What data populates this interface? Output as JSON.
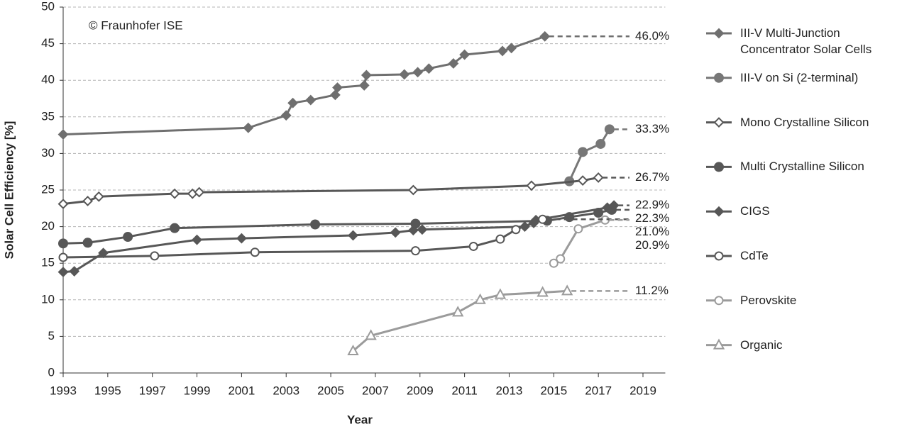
{
  "chart_data": {
    "type": "line",
    "annotation": "© Fraunhofer ISE",
    "x_label": "Year",
    "y_label": "Solar Cell Efficiency [%]",
    "xlim": [
      1993,
      2020
    ],
    "xticks": [
      1993,
      1995,
      1997,
      1999,
      2001,
      2003,
      2005,
      2007,
      2009,
      2011,
      2013,
      2015,
      2017,
      2019
    ],
    "ylim": [
      0,
      50
    ],
    "yticks": [
      0,
      5,
      10,
      15,
      20,
      25,
      30,
      35,
      40,
      45,
      50
    ],
    "grid": true,
    "series": [
      {
        "name": "III-V Multi-Junction Concentrator Solar Cells",
        "color": "#6f6f6f",
        "marker": "diamond",
        "filled": true,
        "x": [
          1993,
          2001.3,
          2003.0,
          2003.3,
          2004.1,
          2005.2,
          2005.3,
          2006.5,
          2006.6,
          2008.3,
          2008.9,
          2009.4,
          2010.5,
          2011.0,
          2012.7,
          2013.1,
          2014.6
        ],
        "values": [
          32.6,
          33.5,
          35.2,
          36.9,
          37.3,
          38.0,
          39.0,
          39.3,
          40.7,
          40.8,
          41.1,
          41.6,
          42.3,
          43.5,
          44.0,
          44.4,
          46.0
        ],
        "value_labels": [
          null,
          null,
          null,
          null,
          null,
          null,
          null,
          null,
          null,
          null,
          null,
          null,
          null,
          null,
          null,
          null,
          "46.0%"
        ]
      },
      {
        "name": "III-V on Si (2-terminal)",
        "color": "#777777",
        "marker": "circle",
        "filled": true,
        "x": [
          2015.7,
          2016.3,
          2017.1,
          2017.5
        ],
        "values": [
          26.2,
          30.2,
          31.3,
          33.3
        ],
        "value_labels": [
          null,
          null,
          null,
          "33.3%"
        ]
      },
      {
        "name": "Mono Crystalline Silicon",
        "color": "#575757",
        "marker": "diamond",
        "filled": false,
        "x": [
          1993,
          1994.1,
          1994.6,
          1998.0,
          1998.8,
          1999.1,
          2008.7,
          2014.0,
          2016.3,
          2017.0
        ],
        "values": [
          23.1,
          23.5,
          24.1,
          24.5,
          24.5,
          24.7,
          25.0,
          25.6,
          26.3,
          26.7
        ],
        "value_labels": [
          null,
          null,
          null,
          null,
          null,
          null,
          null,
          null,
          null,
          "26.7%"
        ]
      },
      {
        "name": "Multi Crystalline Silicon",
        "color": "#575757",
        "marker": "circle",
        "filled": true,
        "x": [
          1993,
          1994.1,
          1995.9,
          1998.0,
          2004.3,
          2008.8,
          2014.7,
          2015.7,
          2017.0,
          2017.6
        ],
        "values": [
          17.7,
          17.8,
          18.6,
          19.8,
          20.3,
          20.4,
          20.8,
          21.3,
          21.9,
          22.3
        ],
        "value_labels": [
          null,
          null,
          null,
          null,
          null,
          null,
          null,
          null,
          null,
          "22.3%"
        ]
      },
      {
        "name": "CIGS",
        "color": "#575757",
        "marker": "diamond",
        "filled": true,
        "x": [
          1993,
          1993.5,
          1994.8,
          1999.0,
          2001.0,
          2006.0,
          2007.9,
          2008.7,
          2009.1,
          2013.7,
          2014.1,
          2014.2,
          2017.4,
          2017.7
        ],
        "values": [
          13.8,
          13.9,
          16.4,
          18.2,
          18.4,
          18.8,
          19.2,
          19.5,
          19.6,
          20.0,
          20.5,
          20.9,
          22.6,
          22.9
        ],
        "value_labels": [
          null,
          null,
          null,
          null,
          null,
          null,
          null,
          null,
          null,
          null,
          null,
          null,
          null,
          "22.9%"
        ]
      },
      {
        "name": "CdTe",
        "color": "#575757",
        "marker": "circle",
        "filled": false,
        "x": [
          1993,
          1997.1,
          2001.6,
          2008.8,
          2011.4,
          2012.6,
          2013.3,
          2014.5
        ],
        "values": [
          15.8,
          16.0,
          16.5,
          16.7,
          17.3,
          18.3,
          19.6,
          21.0
        ],
        "value_labels": [
          null,
          null,
          null,
          null,
          null,
          null,
          null,
          "21.0%"
        ]
      },
      {
        "name": "Perovskite",
        "color": "#9b9b9b",
        "marker": "circle",
        "filled": false,
        "x": [
          2015.0,
          2015.3,
          2016.1,
          2017.3
        ],
        "values": [
          15.0,
          15.6,
          19.7,
          20.9
        ],
        "value_labels": [
          null,
          null,
          null,
          "20.9%"
        ]
      },
      {
        "name": "Organic",
        "color": "#9b9b9b",
        "marker": "triangle",
        "filled": false,
        "x": [
          2006.0,
          2006.8,
          2010.7,
          2011.7,
          2012.6,
          2014.5,
          2015.6
        ],
        "values": [
          3.0,
          5.1,
          8.3,
          10.0,
          10.7,
          11.0,
          11.2
        ],
        "value_labels": [
          null,
          null,
          null,
          null,
          null,
          null,
          "11.2%"
        ]
      }
    ]
  }
}
